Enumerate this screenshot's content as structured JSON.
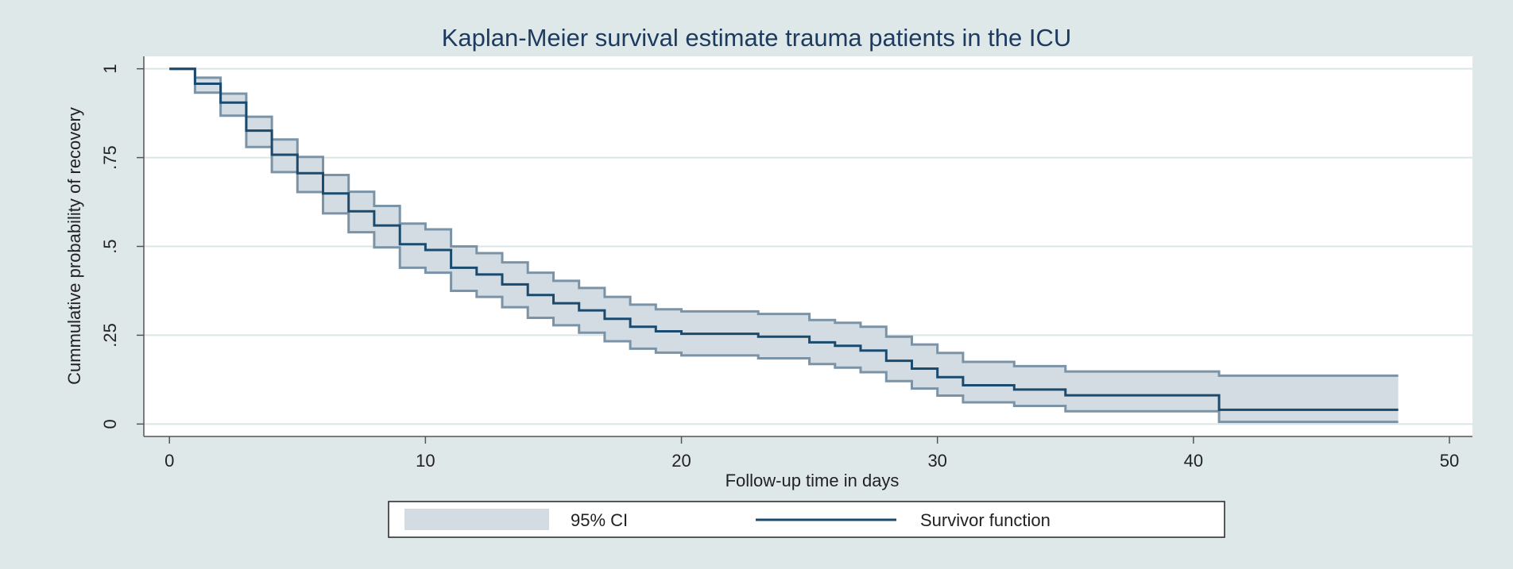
{
  "chart_data": {
    "type": "line",
    "subtype": "kaplan-meier-step",
    "title": "Kaplan-Meier survival estimate  trauma patients in the ICU",
    "xlabel": "Follow-up time in days",
    "ylabel": "Cummulative probability of recovery",
    "xlim": [
      -1,
      50.9
    ],
    "ylim": [
      -0.035,
      1.035
    ],
    "xticks": [
      0,
      10,
      20,
      30,
      40,
      50
    ],
    "xtick_labels": [
      "0",
      "10",
      "20",
      "30",
      "40",
      "50"
    ],
    "yticks": [
      0,
      0.25,
      0.5,
      0.75,
      1
    ],
    "ytick_labels": [
      "0",
      ".25",
      ".5",
      ".75",
      "1"
    ],
    "grid": "horizontal",
    "legend_position": "bottom",
    "colors": {
      "survivor": "#1a4a6e",
      "ci_fill": "#d3dce3",
      "ci_line": "#7b93a6",
      "plot_bg": "#ffffff",
      "grid": "#dbe5e6",
      "axis": "#555555",
      "title": "#1d3a5f",
      "text": "#222222",
      "outer_bg": "#dfe8e8"
    },
    "series": [
      {
        "name": "Survivor function",
        "step_times": [
          0,
          1,
          2,
          3,
          4,
          5,
          6,
          7,
          8,
          9,
          10,
          11,
          12,
          13,
          14,
          15,
          16,
          17,
          18,
          19,
          20,
          23,
          25,
          26,
          27,
          28,
          29,
          30,
          31,
          33,
          35,
          41,
          48
        ],
        "values": [
          1.0,
          0.958,
          0.905,
          0.826,
          0.758,
          0.706,
          0.649,
          0.599,
          0.559,
          0.506,
          0.49,
          0.44,
          0.421,
          0.393,
          0.363,
          0.34,
          0.32,
          0.296,
          0.274,
          0.261,
          0.254,
          0.246,
          0.23,
          0.22,
          0.207,
          0.178,
          0.156,
          0.132,
          0.109,
          0.097,
          0.081,
          0.04,
          0.04
        ]
      },
      {
        "name": "95% CI",
        "step_times": [
          0,
          1,
          2,
          3,
          4,
          5,
          6,
          7,
          8,
          9,
          10,
          11,
          12,
          13,
          14,
          15,
          16,
          17,
          18,
          19,
          20,
          23,
          25,
          26,
          27,
          28,
          29,
          30,
          31,
          33,
          35,
          41,
          48
        ],
        "upper": [
          1.0,
          0.975,
          0.93,
          0.865,
          0.801,
          0.752,
          0.701,
          0.654,
          0.614,
          0.564,
          0.548,
          0.5,
          0.481,
          0.455,
          0.426,
          0.403,
          0.383,
          0.358,
          0.336,
          0.323,
          0.317,
          0.31,
          0.293,
          0.285,
          0.274,
          0.246,
          0.224,
          0.2,
          0.175,
          0.163,
          0.148,
          0.136,
          0.136
        ],
        "lower": [
          1.0,
          0.933,
          0.868,
          0.78,
          0.709,
          0.653,
          0.593,
          0.54,
          0.497,
          0.44,
          0.426,
          0.375,
          0.358,
          0.329,
          0.299,
          0.278,
          0.257,
          0.233,
          0.212,
          0.201,
          0.193,
          0.185,
          0.169,
          0.159,
          0.146,
          0.121,
          0.1,
          0.08,
          0.061,
          0.051,
          0.036,
          0.006,
          0.006
        ]
      }
    ],
    "legend": [
      {
        "label": "95% CI",
        "kind": "band"
      },
      {
        "label": "Survivor function",
        "kind": "line"
      }
    ]
  }
}
